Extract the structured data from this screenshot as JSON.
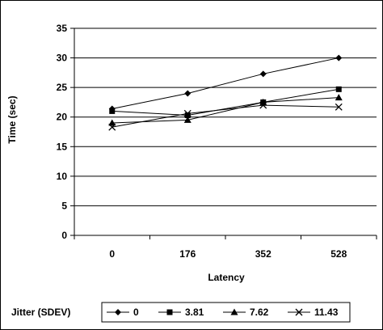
{
  "chart_data": {
    "type": "line",
    "title": "",
    "xlabel": "Latency",
    "ylabel": "Time (sec)",
    "categories": [
      "0",
      "176",
      "352",
      "528"
    ],
    "ylim": [
      0,
      35
    ],
    "yticks": [
      "0",
      "5",
      "10",
      "15",
      "20",
      "25",
      "30",
      "35"
    ],
    "grid": "horizontal",
    "legend_title": "Jitter (SDEV)",
    "legend_position": "bottom",
    "series": [
      {
        "name": "0",
        "marker": "diamond",
        "values": [
          21.4,
          24.0,
          27.3,
          30.0
        ]
      },
      {
        "name": "3.81",
        "marker": "square",
        "values": [
          21.0,
          20.3,
          22.5,
          24.7
        ]
      },
      {
        "name": "7.62",
        "marker": "triangle",
        "values": [
          19.0,
          19.5,
          22.5,
          23.3
        ]
      },
      {
        "name": "11.43",
        "marker": "x",
        "values": [
          18.3,
          20.6,
          22.0,
          21.7
        ]
      }
    ],
    "colors": {
      "line": "#000000",
      "grid": "#000000",
      "background": "#ffffff"
    }
  }
}
